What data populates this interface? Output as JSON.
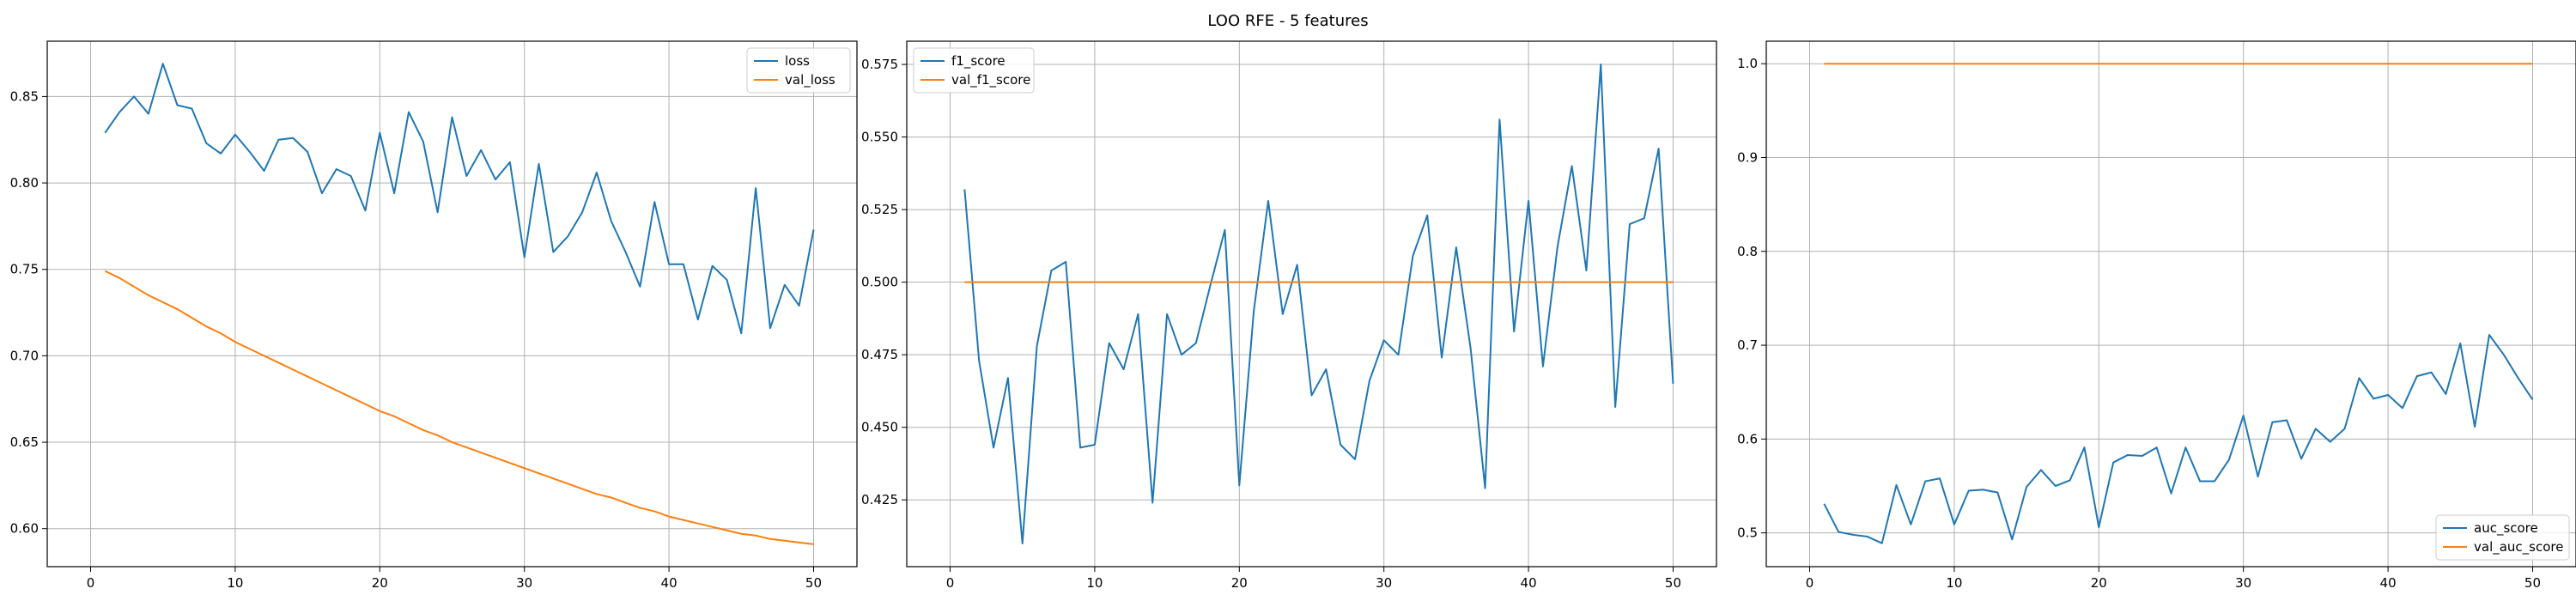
{
  "figure": {
    "suptitle": "LOO RFE - 5 features",
    "colors": {
      "series_1": "#1f77b4",
      "series_2": "#ff7f0e",
      "grid": "#b0b0b0",
      "axes": "#000000"
    }
  },
  "chart_data": [
    {
      "type": "line",
      "title": "",
      "xlabel": "",
      "ylabel": "",
      "xlim": [
        -3,
        53
      ],
      "ylim": [
        0.578,
        0.882
      ],
      "xticks": [
        0,
        10,
        20,
        30,
        40,
        50
      ],
      "yticks": [
        0.6,
        0.65,
        0.7,
        0.75,
        0.8,
        0.85
      ],
      "ytick_labels": [
        "0.60",
        "0.65",
        "0.70",
        "0.75",
        "0.80",
        "0.85"
      ],
      "grid": true,
      "legend_position": "top-right",
      "x": [
        1,
        2,
        3,
        4,
        5,
        6,
        7,
        8,
        9,
        10,
        11,
        12,
        13,
        14,
        15,
        16,
        17,
        18,
        19,
        20,
        21,
        22,
        23,
        24,
        25,
        26,
        27,
        28,
        29,
        30,
        31,
        32,
        33,
        34,
        35,
        36,
        37,
        38,
        39,
        40,
        41,
        42,
        43,
        44,
        45,
        46,
        47,
        48,
        49,
        50
      ],
      "series": [
        {
          "name": "loss",
          "color": "#1f77b4",
          "values": [
            0.829,
            0.841,
            0.85,
            0.84,
            0.869,
            0.845,
            0.843,
            0.823,
            0.817,
            0.828,
            0.818,
            0.807,
            0.825,
            0.826,
            0.818,
            0.794,
            0.808,
            0.804,
            0.784,
            0.829,
            0.794,
            0.841,
            0.824,
            0.783,
            0.838,
            0.804,
            0.819,
            0.802,
            0.812,
            0.757,
            0.811,
            0.76,
            0.769,
            0.783,
            0.806,
            0.778,
            0.76,
            0.74,
            0.789,
            0.753,
            0.753,
            0.721,
            0.752,
            0.744,
            0.713,
            0.797,
            0.716,
            0.741,
            0.729,
            0.773
          ]
        },
        {
          "name": "val_loss",
          "color": "#ff7f0e",
          "values": [
            0.749,
            0.745,
            0.74,
            0.735,
            0.731,
            0.727,
            0.722,
            0.717,
            0.713,
            0.708,
            0.704,
            0.7,
            0.696,
            0.692,
            0.688,
            0.684,
            0.68,
            0.676,
            0.672,
            0.668,
            0.665,
            0.661,
            0.657,
            0.654,
            0.65,
            0.647,
            0.644,
            0.641,
            0.638,
            0.635,
            0.632,
            0.629,
            0.626,
            0.623,
            0.62,
            0.618,
            0.615,
            0.612,
            0.61,
            0.607,
            0.605,
            0.603,
            0.601,
            0.599,
            0.597,
            0.596,
            0.594,
            0.593,
            0.592,
            0.591
          ]
        }
      ]
    },
    {
      "type": "line",
      "title": "",
      "xlabel": "",
      "ylabel": "",
      "xlim": [
        -3,
        53
      ],
      "ylim": [
        0.402,
        0.583
      ],
      "xticks": [
        0,
        10,
        20,
        30,
        40,
        50
      ],
      "yticks": [
        0.425,
        0.45,
        0.475,
        0.5,
        0.525,
        0.55,
        0.575
      ],
      "ytick_labels": [
        "0.425",
        "0.450",
        "0.475",
        "0.500",
        "0.525",
        "0.550",
        "0.575"
      ],
      "grid": true,
      "legend_position": "top-left",
      "x": [
        1,
        2,
        3,
        4,
        5,
        6,
        7,
        8,
        9,
        10,
        11,
        12,
        13,
        14,
        15,
        16,
        17,
        18,
        19,
        20,
        21,
        22,
        23,
        24,
        25,
        26,
        27,
        28,
        29,
        30,
        31,
        32,
        33,
        34,
        35,
        36,
        37,
        38,
        39,
        40,
        41,
        42,
        43,
        44,
        45,
        46,
        47,
        48,
        49,
        50
      ],
      "series": [
        {
          "name": "f1_score",
          "color": "#1f77b4",
          "values": [
            0.532,
            0.473,
            0.443,
            0.467,
            0.41,
            0.478,
            0.504,
            0.507,
            0.443,
            0.444,
            0.479,
            0.47,
            0.489,
            0.424,
            0.489,
            0.475,
            0.479,
            0.499,
            0.518,
            0.43,
            0.49,
            0.528,
            0.489,
            0.506,
            0.461,
            0.47,
            0.444,
            0.439,
            0.466,
            0.48,
            0.475,
            0.509,
            0.523,
            0.474,
            0.512,
            0.477,
            0.429,
            0.556,
            0.483,
            0.528,
            0.471,
            0.512,
            0.54,
            0.504,
            0.575,
            0.457,
            0.52,
            0.522,
            0.546,
            0.465
          ]
        },
        {
          "name": "val_f1_score",
          "color": "#ff7f0e",
          "values": [
            0.5,
            0.5,
            0.5,
            0.5,
            0.5,
            0.5,
            0.5,
            0.5,
            0.5,
            0.5,
            0.5,
            0.5,
            0.5,
            0.5,
            0.5,
            0.5,
            0.5,
            0.5,
            0.5,
            0.5,
            0.5,
            0.5,
            0.5,
            0.5,
            0.5,
            0.5,
            0.5,
            0.5,
            0.5,
            0.5,
            0.5,
            0.5,
            0.5,
            0.5,
            0.5,
            0.5,
            0.5,
            0.5,
            0.5,
            0.5,
            0.5,
            0.5,
            0.5,
            0.5,
            0.5,
            0.5,
            0.5,
            0.5,
            0.5,
            0.5
          ]
        }
      ]
    },
    {
      "type": "line",
      "title": "",
      "xlabel": "",
      "ylabel": "",
      "xlim": [
        -3,
        53
      ],
      "ylim": [
        0.464,
        1.024
      ],
      "xticks": [
        0,
        10,
        20,
        30,
        40,
        50
      ],
      "yticks": [
        0.5,
        0.6,
        0.7,
        0.8,
        0.9,
        1.0
      ],
      "ytick_labels": [
        "0.5",
        "0.6",
        "0.7",
        "0.8",
        "0.9",
        "1.0"
      ],
      "grid": true,
      "legend_position": "bottom-right",
      "x": [
        1,
        2,
        3,
        4,
        5,
        6,
        7,
        8,
        9,
        10,
        11,
        12,
        13,
        14,
        15,
        16,
        17,
        18,
        19,
        20,
        21,
        22,
        23,
        24,
        25,
        26,
        27,
        28,
        29,
        30,
        31,
        32,
        33,
        34,
        35,
        36,
        37,
        38,
        39,
        40,
        41,
        42,
        43,
        44,
        45,
        46,
        47,
        48,
        49,
        50
      ],
      "series": [
        {
          "name": "auc_score",
          "color": "#1f77b4",
          "values": [
            0.531,
            0.501,
            0.498,
            0.496,
            0.489,
            0.551,
            0.509,
            0.555,
            0.558,
            0.509,
            0.545,
            0.546,
            0.543,
            0.493,
            0.549,
            0.567,
            0.55,
            0.556,
            0.591,
            0.506,
            0.575,
            0.583,
            0.582,
            0.591,
            0.542,
            0.591,
            0.555,
            0.555,
            0.578,
            0.625,
            0.56,
            0.618,
            0.62,
            0.579,
            0.611,
            0.597,
            0.611,
            0.665,
            0.643,
            0.647,
            0.633,
            0.667,
            0.671,
            0.648,
            0.702,
            0.613,
            0.711,
            0.69,
            0.665,
            0.642
          ]
        },
        {
          "name": "val_auc_score",
          "color": "#ff7f0e",
          "values": [
            1.0,
            1.0,
            1.0,
            1.0,
            1.0,
            1.0,
            1.0,
            1.0,
            1.0,
            1.0,
            1.0,
            1.0,
            1.0,
            1.0,
            1.0,
            1.0,
            1.0,
            1.0,
            1.0,
            1.0,
            1.0,
            1.0,
            1.0,
            1.0,
            1.0,
            1.0,
            1.0,
            1.0,
            1.0,
            1.0,
            1.0,
            1.0,
            1.0,
            1.0,
            1.0,
            1.0,
            1.0,
            1.0,
            1.0,
            1.0,
            1.0,
            1.0,
            1.0,
            1.0,
            1.0,
            1.0,
            1.0,
            1.0,
            1.0,
            1.0
          ]
        }
      ]
    }
  ]
}
